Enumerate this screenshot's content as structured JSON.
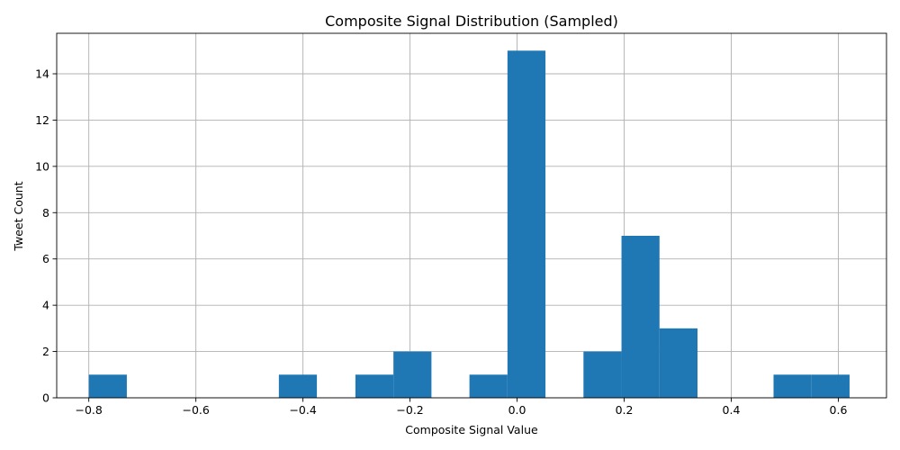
{
  "chart_data": {
    "type": "bar",
    "title": "Composite Signal Distribution (Sampled)",
    "xlabel": "Composite Signal Value",
    "ylabel": "Tweet Count",
    "xlim": [
      -0.86,
      0.69
    ],
    "ylim": [
      0,
      15.75
    ],
    "x_ticks": [
      "−0.8",
      "−0.6",
      "−0.4",
      "−0.2",
      "0.0",
      "0.2",
      "0.4",
      "0.6"
    ],
    "x_tick_values": [
      -0.8,
      -0.6,
      -0.4,
      -0.2,
      0.0,
      0.2,
      0.4,
      0.6
    ],
    "y_ticks": [
      "0",
      "2",
      "4",
      "6",
      "8",
      "10",
      "12",
      "14"
    ],
    "y_tick_values": [
      0,
      2,
      4,
      6,
      8,
      10,
      12,
      14
    ],
    "grid": true,
    "color": "#1f77b4",
    "bins": [
      {
        "x0": -0.8,
        "x1": -0.729,
        "count": 1
      },
      {
        "x0": -0.729,
        "x1": -0.658,
        "count": 0
      },
      {
        "x0": -0.658,
        "x1": -0.587,
        "count": 0
      },
      {
        "x0": -0.587,
        "x1": -0.516,
        "count": 0
      },
      {
        "x0": -0.516,
        "x1": -0.445,
        "count": 0
      },
      {
        "x0": -0.445,
        "x1": -0.374,
        "count": 1
      },
      {
        "x0": -0.374,
        "x1": -0.302,
        "count": 0
      },
      {
        "x0": -0.302,
        "x1": -0.231,
        "count": 1
      },
      {
        "x0": -0.231,
        "x1": -0.16,
        "count": 2
      },
      {
        "x0": -0.16,
        "x1": -0.089,
        "count": 0
      },
      {
        "x0": -0.089,
        "x1": -0.018,
        "count": 1
      },
      {
        "x0": -0.018,
        "x1": 0.053,
        "count": 15
      },
      {
        "x0": 0.053,
        "x1": 0.124,
        "count": 0
      },
      {
        "x0": 0.124,
        "x1": 0.195,
        "count": 2
      },
      {
        "x0": 0.195,
        "x1": 0.266,
        "count": 7
      },
      {
        "x0": 0.266,
        "x1": 0.337,
        "count": 3
      },
      {
        "x0": 0.337,
        "x1": 0.408,
        "count": 0
      },
      {
        "x0": 0.408,
        "x1": 0.479,
        "count": 0
      },
      {
        "x0": 0.479,
        "x1": 0.55,
        "count": 1
      },
      {
        "x0": 0.55,
        "x1": 0.621,
        "count": 1
      }
    ]
  }
}
